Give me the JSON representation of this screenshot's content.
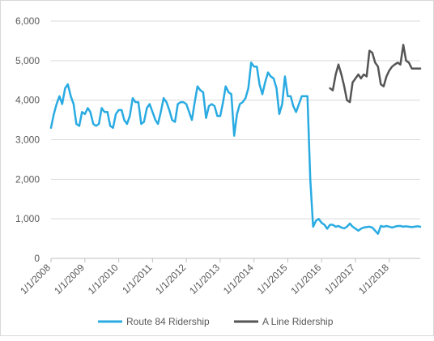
{
  "chart_data": {
    "type": "line",
    "title": "",
    "xlabel": "",
    "ylabel": "",
    "ylim": [
      0,
      6000
    ],
    "xlim": [
      "2008-01-01",
      "2018-12-01"
    ],
    "y_ticks": [
      "0",
      "1,000",
      "2,000",
      "3,000",
      "4,000",
      "5,000",
      "6,000"
    ],
    "y_tick_values": [
      0,
      1000,
      2000,
      3000,
      4000,
      5000,
      6000
    ],
    "x_ticks": [
      "1/1/2008",
      "1/1/2009",
      "1/1/2010",
      "1/1/2011",
      "1/1/2012",
      "1/1/2013",
      "1/1/2014",
      "1/1/2015",
      "1/1/2016",
      "1/1/2017",
      "1/1/2018"
    ],
    "x_tick_dates": [
      "2008-01-01",
      "2009-01-01",
      "2010-01-01",
      "2011-01-01",
      "2012-01-01",
      "2013-01-01",
      "2014-01-01",
      "2015-01-01",
      "2016-01-01",
      "2017-01-01",
      "2018-01-01"
    ],
    "grid": "horizontal",
    "legend_position": "bottom",
    "series": [
      {
        "name": "Route 84 Ridership",
        "color": "#29abe2",
        "x": [
          "2008-01-01",
          "2008-02-01",
          "2008-03-01",
          "2008-04-01",
          "2008-05-01",
          "2008-06-01",
          "2008-07-01",
          "2008-08-01",
          "2008-09-01",
          "2008-10-01",
          "2008-11-01",
          "2008-12-01",
          "2009-01-01",
          "2009-02-01",
          "2009-03-01",
          "2009-04-01",
          "2009-05-01",
          "2009-06-01",
          "2009-07-01",
          "2009-08-01",
          "2009-09-01",
          "2009-10-01",
          "2009-11-01",
          "2009-12-01",
          "2010-01-01",
          "2010-02-01",
          "2010-03-01",
          "2010-04-01",
          "2010-05-01",
          "2010-06-01",
          "2010-07-01",
          "2010-08-01",
          "2010-09-01",
          "2010-10-01",
          "2010-11-01",
          "2010-12-01",
          "2011-01-01",
          "2011-02-01",
          "2011-03-01",
          "2011-04-01",
          "2011-05-01",
          "2011-06-01",
          "2011-07-01",
          "2011-08-01",
          "2011-09-01",
          "2011-10-01",
          "2011-11-01",
          "2011-12-01",
          "2012-01-01",
          "2012-02-01",
          "2012-03-01",
          "2012-04-01",
          "2012-05-01",
          "2012-06-01",
          "2012-07-01",
          "2012-08-01",
          "2012-09-01",
          "2012-10-01",
          "2012-11-01",
          "2012-12-01",
          "2013-01-01",
          "2013-02-01",
          "2013-03-01",
          "2013-04-01",
          "2013-05-01",
          "2013-06-01",
          "2013-07-01",
          "2013-08-01",
          "2013-09-01",
          "2013-10-01",
          "2013-11-01",
          "2013-12-01",
          "2014-01-01",
          "2014-02-01",
          "2014-03-01",
          "2014-04-01",
          "2014-05-01",
          "2014-06-01",
          "2014-07-01",
          "2014-08-01",
          "2014-09-01",
          "2014-10-01",
          "2014-11-01",
          "2014-12-01",
          "2015-01-01",
          "2015-02-01",
          "2015-03-01",
          "2015-04-01",
          "2015-05-01",
          "2015-06-01",
          "2015-07-01",
          "2015-08-01",
          "2015-09-01",
          "2015-10-01",
          "2015-11-01",
          "2015-12-01",
          "2016-01-01",
          "2016-02-01",
          "2016-03-01",
          "2016-04-01",
          "2016-05-01",
          "2016-06-01",
          "2016-07-01",
          "2016-08-01",
          "2016-09-01",
          "2016-10-01",
          "2016-11-01",
          "2016-12-01",
          "2017-01-01",
          "2017-02-01",
          "2017-03-01",
          "2017-04-01",
          "2017-05-01",
          "2017-06-01",
          "2017-07-01",
          "2017-08-01",
          "2017-09-01",
          "2017-10-01",
          "2017-11-01",
          "2017-12-01",
          "2018-01-01",
          "2018-02-01",
          "2018-03-01",
          "2018-04-01",
          "2018-05-01",
          "2018-06-01",
          "2018-07-01",
          "2018-08-01",
          "2018-09-01",
          "2018-10-01",
          "2018-11-01",
          "2018-12-01"
        ],
        "values": [
          3300,
          3650,
          3900,
          4100,
          3900,
          4300,
          4400,
          4100,
          3900,
          3400,
          3350,
          3700,
          3650,
          3800,
          3700,
          3400,
          3350,
          3400,
          3800,
          3700,
          3700,
          3350,
          3300,
          3650,
          3750,
          3750,
          3500,
          3400,
          3600,
          4050,
          3950,
          3950,
          3400,
          3450,
          3800,
          3900,
          3700,
          3500,
          3400,
          3700,
          4050,
          3950,
          3750,
          3500,
          3450,
          3900,
          3950,
          3950,
          3900,
          3700,
          3500,
          3950,
          4350,
          4250,
          4200,
          3550,
          3850,
          3900,
          3850,
          3600,
          3600,
          3950,
          4350,
          4200,
          4150,
          3100,
          3650,
          3900,
          3950,
          4050,
          4300,
          4950,
          4850,
          4850,
          4400,
          4150,
          4450,
          4700,
          4600,
          4550,
          4300,
          3650,
          3900,
          4600,
          4100,
          4100,
          3850,
          3700,
          3900,
          4100,
          4100,
          4100,
          2000,
          800,
          950,
          1000,
          900,
          850,
          750,
          850,
          850,
          800,
          820,
          780,
          760,
          800,
          880,
          800,
          750,
          700,
          750,
          780,
          790,
          800,
          780,
          700,
          620,
          820,
          800,
          820,
          800,
          780,
          800,
          820,
          820,
          800,
          810,
          800,
          790,
          800,
          810,
          800
        ]
      },
      {
        "name": "A Line Ridership",
        "color": "#555555",
        "x": [
          "2016-04-01",
          "2016-05-01",
          "2016-06-01",
          "2016-07-01",
          "2016-08-01",
          "2016-09-01",
          "2016-10-01",
          "2016-11-01",
          "2016-12-01",
          "2017-01-01",
          "2017-02-01",
          "2017-03-01",
          "2017-04-01",
          "2017-05-01",
          "2017-06-01",
          "2017-07-01",
          "2017-08-01",
          "2017-09-01",
          "2017-10-01",
          "2017-11-01",
          "2017-12-01",
          "2018-01-01",
          "2018-02-01",
          "2018-03-01",
          "2018-04-01",
          "2018-05-01",
          "2018-06-01",
          "2018-07-01",
          "2018-08-01",
          "2018-09-01",
          "2018-10-01",
          "2018-11-01",
          "2018-12-01"
        ],
        "values": [
          4300,
          4250,
          4650,
          4900,
          4650,
          4350,
          4000,
          3950,
          4450,
          4550,
          4650,
          4550,
          4650,
          4600,
          5250,
          5200,
          4950,
          4850,
          4400,
          4350,
          4600,
          4750,
          4850,
          4900,
          4950,
          4900,
          5400,
          5000,
          4950,
          4800,
          4800,
          4800,
          4800
        ]
      }
    ]
  }
}
